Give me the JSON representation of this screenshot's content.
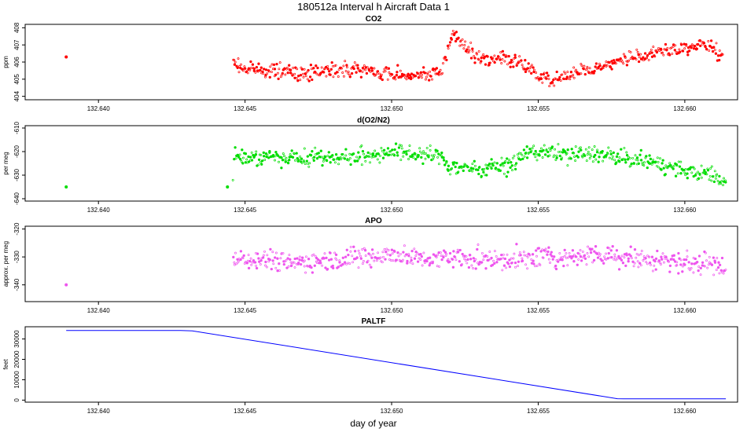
{
  "figure": {
    "title": "180512a   Interval h Aircraft Data 1",
    "xlabel": "day of year"
  },
  "chart_data": [
    {
      "type": "scatter",
      "title": "CO2",
      "ylabel": "ppm",
      "color": "#ff0000",
      "xlim": [
        132.6375,
        132.6618
      ],
      "ylim": [
        403.8,
        408.2
      ],
      "xticks": [
        "132.640",
        "132.645",
        "132.650",
        "132.655",
        "132.660"
      ],
      "yticks": [
        "404",
        "405",
        "406",
        "407",
        "408"
      ],
      "isolated_points": [
        {
          "x": 132.6389,
          "y": 406.3
        }
      ],
      "series": [
        {
          "x_start": 132.6446,
          "x_end": 132.6613,
          "y_anchors": [
            [
              132.6446,
              406.0
            ],
            [
              132.645,
              405.6
            ],
            [
              132.646,
              405.5
            ],
            [
              132.647,
              405.3
            ],
            [
              132.648,
              405.6
            ],
            [
              132.649,
              405.5
            ],
            [
              132.65,
              405.3
            ],
            [
              132.651,
              405.2
            ],
            [
              132.6517,
              405.4
            ],
            [
              132.6521,
              407.7
            ],
            [
              132.6525,
              406.9
            ],
            [
              132.653,
              406.2
            ],
            [
              132.654,
              406.2
            ],
            [
              132.655,
              405.3
            ],
            [
              132.6555,
              404.9
            ],
            [
              132.656,
              405.3
            ],
            [
              132.657,
              405.6
            ],
            [
              132.658,
              406.2
            ],
            [
              132.659,
              406.5
            ],
            [
              132.66,
              406.8
            ],
            [
              132.6608,
              407.0
            ],
            [
              132.6613,
              406.3
            ]
          ],
          "noise": 0.35
        }
      ]
    },
    {
      "type": "scatter",
      "title": "d(O2/N2)",
      "ylabel": "per meg",
      "color": "#00dd00",
      "xlim": [
        132.6375,
        132.6618
      ],
      "ylim": [
        -641,
        -609
      ],
      "xticks": [
        "132.640",
        "132.645",
        "132.650",
        "132.655",
        "132.660"
      ],
      "yticks": [
        "-640",
        "-630",
        "-620",
        "-610"
      ],
      "isolated_points": [
        {
          "x": 132.6389,
          "y": -635
        },
        {
          "x": 132.6444,
          "y": -635
        }
      ],
      "series": [
        {
          "x_start": 132.6446,
          "x_end": 132.6614,
          "y_anchors": [
            [
              132.6446,
              -622
            ],
            [
              132.646,
              -623
            ],
            [
              132.647,
              -622
            ],
            [
              132.648,
              -623
            ],
            [
              132.649,
              -622
            ],
            [
              132.65,
              -620
            ],
            [
              132.651,
              -621
            ],
            [
              132.6517,
              -622
            ],
            [
              132.652,
              -627
            ],
            [
              132.653,
              -627
            ],
            [
              132.654,
              -626
            ],
            [
              132.6547,
              -620
            ],
            [
              132.656,
              -621
            ],
            [
              132.657,
              -621
            ],
            [
              132.658,
              -623
            ],
            [
              132.659,
              -625
            ],
            [
              132.66,
              -628
            ],
            [
              132.661,
              -630
            ],
            [
              132.6614,
              -633
            ]
          ],
          "noise": 3.0
        }
      ]
    },
    {
      "type": "scatter",
      "title": "APO",
      "ylabel": "approx. per meg",
      "color": "#ee55ee",
      "xlim": [
        132.6375,
        132.6618
      ],
      "ylim": [
        -346,
        -319
      ],
      "xticks": [
        "132.640",
        "132.645",
        "132.650",
        "132.655",
        "132.660"
      ],
      "yticks": [
        "-340",
        "-330",
        "-320"
      ],
      "isolated_points": [
        {
          "x": 132.6389,
          "y": -340
        }
      ],
      "series": [
        {
          "x_start": 132.6446,
          "x_end": 132.6614,
          "y_anchors": [
            [
              132.6446,
              -330
            ],
            [
              132.646,
              -331
            ],
            [
              132.647,
              -332
            ],
            [
              132.648,
              -331
            ],
            [
              132.649,
              -330
            ],
            [
              132.65,
              -329
            ],
            [
              132.651,
              -331
            ],
            [
              132.652,
              -330
            ],
            [
              132.653,
              -331
            ],
            [
              132.654,
              -331
            ],
            [
              132.655,
              -330
            ],
            [
              132.656,
              -330
            ],
            [
              132.657,
              -329
            ],
            [
              132.658,
              -330
            ],
            [
              132.659,
              -331
            ],
            [
              132.66,
              -332
            ],
            [
              132.661,
              -333
            ],
            [
              132.6614,
              -335
            ]
          ],
          "noise": 3.2
        }
      ]
    },
    {
      "type": "line",
      "title": "PALTF",
      "ylabel": "feet",
      "color": "#0000ff",
      "xlim": [
        132.6375,
        132.6618
      ],
      "ylim": [
        -1000,
        36000
      ],
      "xticks": [
        "132.640",
        "132.645",
        "132.650",
        "132.655",
        "132.660"
      ],
      "yticks": [
        "0",
        "10000",
        "20000",
        "30000"
      ],
      "x": [
        132.6389,
        132.6428,
        132.6432,
        132.6577,
        132.6579,
        132.6614
      ],
      "y": [
        34200,
        34200,
        34000,
        700,
        600,
        600
      ]
    }
  ]
}
